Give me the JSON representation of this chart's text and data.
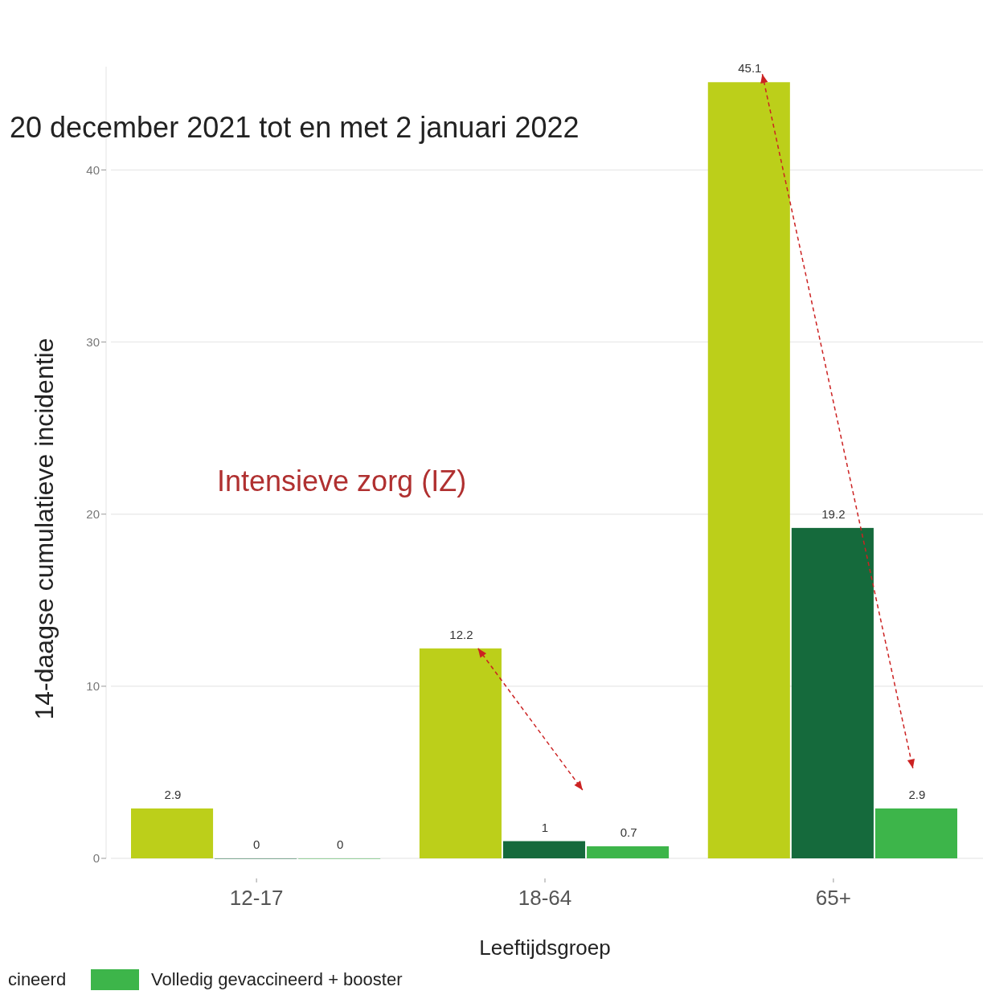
{
  "chart_data": {
    "type": "bar",
    "subtitle": "20 december 2021 tot en met 2 januari 2022",
    "xlabel": "Leeftijdsgroep",
    "ylabel": "14-daagse cumulatieve incidentie",
    "categories": [
      "12-17",
      "18-64",
      "65+"
    ],
    "series": [
      {
        "color": "#bccf1a",
        "values": [
          2.9,
          12.2,
          45.1
        ]
      },
      {
        "color": "#156a3c",
        "values": [
          0,
          1,
          19.2
        ]
      },
      {
        "name": "Volledig gevaccineerd + booster",
        "color": "#3db54a",
        "values": [
          0,
          0.7,
          2.9
        ]
      }
    ],
    "ylim": [
      0,
      46
    ],
    "yticks": [
      0,
      10,
      20,
      30,
      40
    ],
    "grid": "y",
    "data_labels": true,
    "legend": "bottom",
    "annotations": [
      "Intensieve zorg (IZ)",
      "cineerd"
    ]
  }
}
